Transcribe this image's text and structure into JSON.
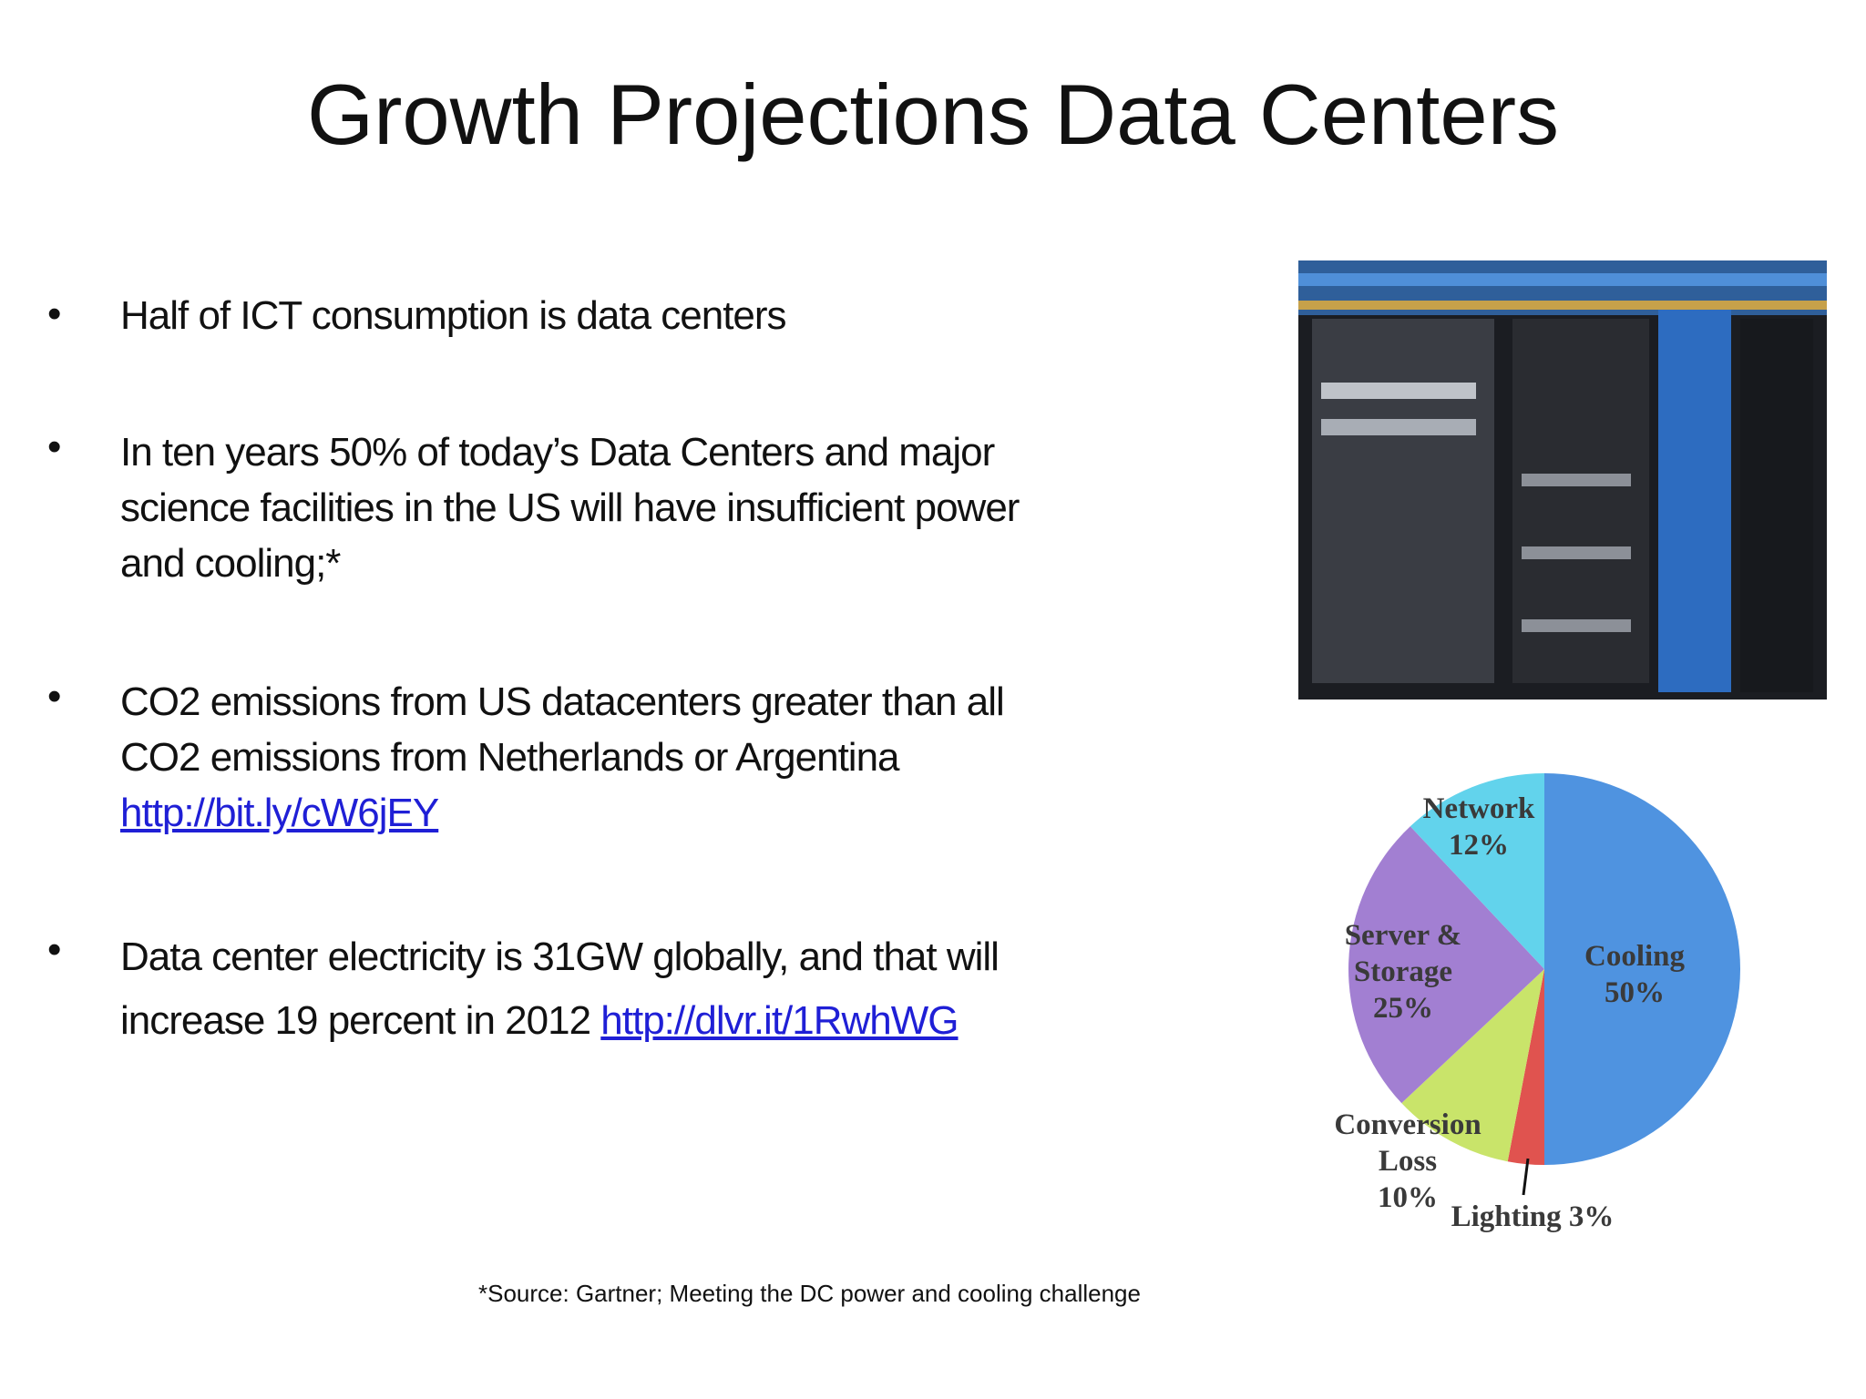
{
  "title": "Growth Projections Data Centers",
  "bullets": [
    {
      "lines": [
        "Half of ICT consumption is data centers"
      ]
    },
    {
      "lines": [
        "In ten years  50% of today’s Data Centers and major",
        "science facilities in the US will have insufficient power",
        "and cooling;*"
      ]
    },
    {
      "lines": [
        "CO2 emissions from US datacenters greater than all",
        "CO2 emissions from Netherlands or Argentina"
      ],
      "link": "http://bit.ly/cW6jEY"
    },
    {
      "lines": [
        "Data center electricity is 31GW globally, and that will",
        "increase 19 percent in 2012"
      ],
      "link": "http://dlvr.it/1RwhWG"
    }
  ],
  "footnote": "*Source:  Gartner; Meeting the DC power and cooling challenge",
  "chart_data": {
    "type": "pie",
    "categories": [
      "Cooling",
      "Lighting",
      "Conversion Loss",
      "Server & Storage",
      "Network"
    ],
    "values": [
      50,
      3,
      10,
      25,
      12
    ],
    "value_labels": [
      "50%",
      "3%",
      "10%",
      "25%",
      "12%"
    ],
    "colors": [
      "#4f93e0",
      "#e0534f",
      "#c9e46a",
      "#a27fd2",
      "#62d3ec"
    ]
  }
}
